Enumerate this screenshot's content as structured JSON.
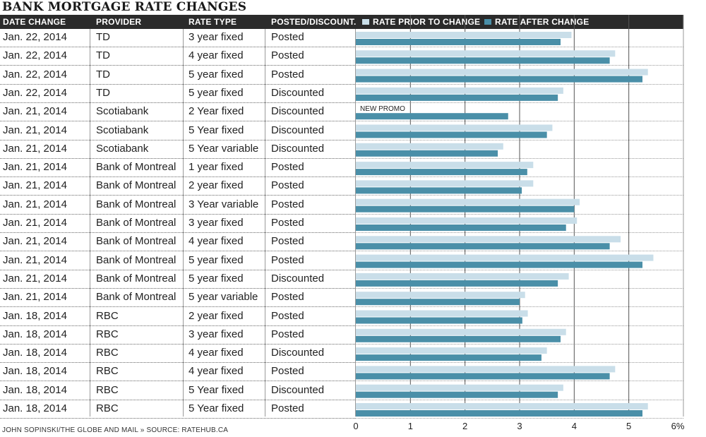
{
  "title": "BANK MORTGAGE RATE CHANGES",
  "headers": {
    "date": "DATE CHANGE",
    "provider": "PROVIDER",
    "rate_type": "RATE TYPE",
    "posted": "POSTED/DISCOUNT.",
    "legend_prior": "RATE PRIOR TO CHANGE",
    "legend_after": "RATE AFTER CHANGE"
  },
  "footer": "JOHN SOPINSKI/THE GLOBE AND MAIL  »  SOURCE: RATEHUB.CA",
  "colors": {
    "prior": "#c9dee9",
    "after": "#4a8fa8",
    "header_bg": "#2b2b2b"
  },
  "chart_data": {
    "type": "bar",
    "orientation": "horizontal",
    "xlim": [
      0,
      6
    ],
    "x_ticks": [
      "0",
      "1",
      "2",
      "3",
      "4",
      "5",
      "6%"
    ],
    "series": [
      {
        "name": "RATE PRIOR TO CHANGE",
        "values": [
          3.95,
          4.75,
          5.35,
          3.8,
          null,
          3.6,
          2.7,
          3.25,
          3.25,
          4.1,
          4.05,
          4.85,
          5.45,
          3.9,
          3.1,
          3.15,
          3.85,
          3.5,
          4.75,
          3.8,
          5.35
        ]
      },
      {
        "name": "RATE AFTER CHANGE",
        "values": [
          3.75,
          4.65,
          5.25,
          3.7,
          2.79,
          3.5,
          2.6,
          3.14,
          3.04,
          4.0,
          3.85,
          4.65,
          5.25,
          3.7,
          3.0,
          3.05,
          3.75,
          3.4,
          4.65,
          3.7,
          5.25
        ]
      }
    ],
    "annotations": [
      {
        "row": 4,
        "text": "NEW PROMO"
      }
    ],
    "rows": [
      {
        "date": "Jan. 22, 2014",
        "provider": "TD",
        "rate_type": "3 year fixed",
        "posted": "Posted"
      },
      {
        "date": "Jan. 22, 2014",
        "provider": "TD",
        "rate_type": "4 year fixed",
        "posted": "Posted"
      },
      {
        "date": "Jan. 22, 2014",
        "provider": "TD",
        "rate_type": "5 year fixed",
        "posted": "Posted"
      },
      {
        "date": "Jan. 22, 2014",
        "provider": "TD",
        "rate_type": "5 year fixed",
        "posted": "Discounted"
      },
      {
        "date": "Jan. 21, 2014",
        "provider": "Scotiabank",
        "rate_type": "2 Year fixed",
        "posted": "Discounted"
      },
      {
        "date": "Jan. 21, 2014",
        "provider": "Scotiabank",
        "rate_type": "5 Year fixed",
        "posted": "Discounted"
      },
      {
        "date": "Jan. 21, 2014",
        "provider": "Scotiabank",
        "rate_type": "5 Year variable",
        "posted": "Discounted"
      },
      {
        "date": "Jan. 21, 2014",
        "provider": "Bank of Montreal",
        "rate_type": "1 year fixed",
        "posted": "Posted"
      },
      {
        "date": "Jan. 21, 2014",
        "provider": "Bank of Montreal",
        "rate_type": "2 year fixed",
        "posted": "Posted"
      },
      {
        "date": "Jan. 21, 2014",
        "provider": "Bank of Montreal",
        "rate_type": "3 Year variable",
        "posted": "Posted"
      },
      {
        "date": "Jan. 21, 2014",
        "provider": "Bank of Montreal",
        "rate_type": "3 year fixed",
        "posted": "Posted"
      },
      {
        "date": "Jan. 21, 2014",
        "provider": "Bank of Montreal",
        "rate_type": "4 year fixed",
        "posted": "Posted"
      },
      {
        "date": "Jan. 21, 2014",
        "provider": "Bank of Montreal",
        "rate_type": "5 year fixed",
        "posted": "Posted"
      },
      {
        "date": "Jan. 21, 2014",
        "provider": "Bank of Montreal",
        "rate_type": "5 year fixed",
        "posted": "Discounted"
      },
      {
        "date": "Jan. 21, 2014",
        "provider": "Bank of Montreal",
        "rate_type": "5 year variable",
        "posted": "Posted"
      },
      {
        "date": "Jan. 18, 2014",
        "provider": "RBC",
        "rate_type": "2 year fixed",
        "posted": "Posted"
      },
      {
        "date": "Jan. 18, 2014",
        "provider": "RBC",
        "rate_type": "3 year fixed",
        "posted": "Posted"
      },
      {
        "date": "Jan. 18, 2014",
        "provider": "RBC",
        "rate_type": "4 year fixed",
        "posted": "Discounted"
      },
      {
        "date": "Jan. 18, 2014",
        "provider": "RBC",
        "rate_type": "4 year fixed",
        "posted": "Posted"
      },
      {
        "date": "Jan. 18, 2014",
        "provider": "RBC",
        "rate_type": "5 Year fixed",
        "posted": "Discounted"
      },
      {
        "date": "Jan. 18, 2014",
        "provider": "RBC",
        "rate_type": "5 Year fixed",
        "posted": "Posted"
      }
    ]
  }
}
